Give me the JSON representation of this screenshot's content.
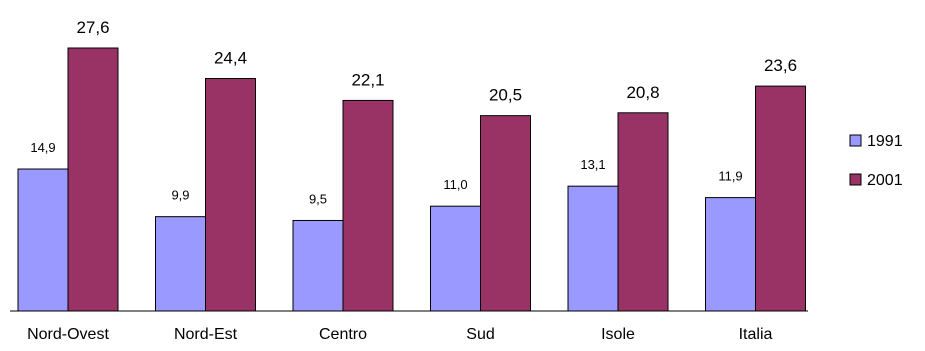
{
  "chart_data": {
    "type": "bar",
    "title": "",
    "xlabel": "",
    "ylabel": "",
    "categories": [
      "Nord-Ovest",
      "Nord-Est",
      "Centro",
      "Sud",
      "Isole",
      "Italia"
    ],
    "series": [
      {
        "name": "1991",
        "color": "#9999ff",
        "values": [
          14.9,
          9.9,
          9.5,
          11.0,
          13.1,
          11.9
        ],
        "labels": [
          "14,9",
          "9,9",
          "9,5",
          "11,0",
          "13,1",
          "11,9"
        ]
      },
      {
        "name": "2001",
        "color": "#993366",
        "values": [
          27.6,
          24.4,
          22.1,
          20.5,
          20.8,
          23.6
        ],
        "labels": [
          "27,6",
          "24,4",
          "22,1",
          "20,5",
          "20,8",
          "23,6"
        ]
      }
    ],
    "ylim": [
      0,
      30
    ],
    "grid": false,
    "legend_position": "right"
  }
}
